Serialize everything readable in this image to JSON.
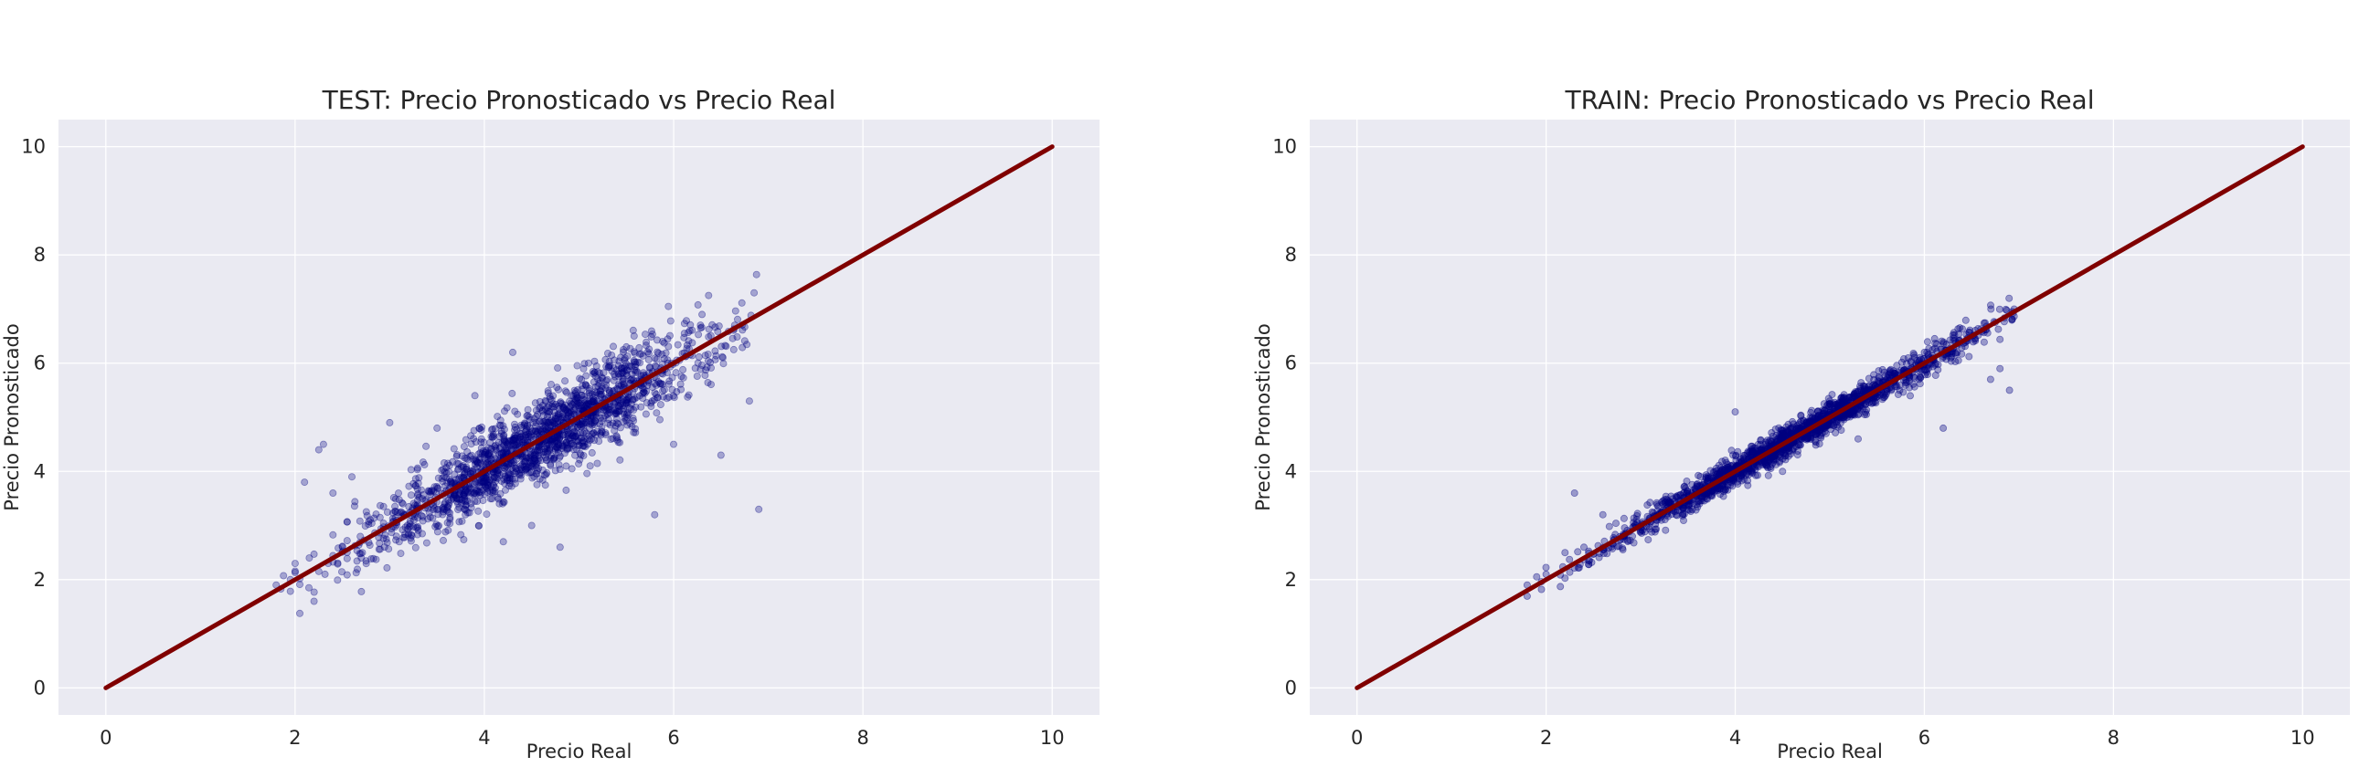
{
  "colors": {
    "plot_background": "#EAEAF2",
    "grid": "#FFFFFF",
    "points": "#000080",
    "reference_line": "#800000",
    "text": "#262626"
  },
  "chart_data": [
    {
      "type": "scatter",
      "title": "TEST: Precio Pronosticado vs Precio Real",
      "xlabel": "Precio Real",
      "ylabel": "Precio Pronosticado",
      "xlim": [
        -0.5,
        10.5
      ],
      "ylim": [
        -0.5,
        10.5
      ],
      "xticks": [
        0,
        2,
        4,
        6,
        8,
        10
      ],
      "yticks": [
        0,
        2,
        4,
        6,
        8,
        10
      ],
      "grid": true,
      "reference_line": {
        "x": [
          0,
          10
        ],
        "y": [
          0,
          10
        ]
      },
      "point_cloud": {
        "x_range": [
          1.8,
          6.95
        ],
        "spread": 0.4,
        "count": 1800,
        "point_alpha": 0.3
      },
      "series": [
        {
          "x": [
            1.8,
            1.95,
            2.1,
            2.15,
            2.2,
            2.25,
            2.3,
            2.35,
            2.4,
            2.6,
            2.7,
            3.0,
            3.1,
            3.5,
            3.8,
            3.9,
            4.2,
            4.3,
            4.5,
            4.8,
            5.1,
            5.5,
            5.8,
            6.0,
            6.3,
            6.5,
            6.8,
            6.85,
            6.9
          ],
          "y": [
            1.9,
            2.0,
            3.8,
            2.4,
            1.6,
            4.4,
            4.5,
            2.3,
            3.6,
            3.9,
            2.4,
            4.9,
            2.7,
            4.8,
            3.2,
            5.4,
            2.7,
            6.2,
            3.0,
            2.6,
            6.0,
            6.3,
            3.2,
            4.5,
            6.9,
            4.3,
            5.3,
            7.3,
            3.3
          ]
        }
      ]
    },
    {
      "type": "scatter",
      "title": "TRAIN: Precio Pronosticado vs Precio Real",
      "xlabel": "Precio Real",
      "ylabel": "Precio Pronosticado",
      "xlim": [
        -0.5,
        10.5
      ],
      "ylim": [
        -0.5,
        10.5
      ],
      "xticks": [
        0,
        2,
        4,
        6,
        8,
        10
      ],
      "yticks": [
        0,
        2,
        4,
        6,
        8,
        10
      ],
      "grid": true,
      "reference_line": {
        "x": [
          0,
          10
        ],
        "y": [
          0,
          10
        ]
      },
      "point_cloud": {
        "x_range": [
          1.8,
          6.95
        ],
        "spread": 0.15,
        "count": 1800,
        "point_alpha": 0.35
      },
      "series": [
        {
          "x": [
            1.8,
            2.0,
            2.2,
            2.3,
            2.4,
            2.6,
            3.0,
            3.5,
            4.0,
            4.5,
            5.0,
            5.3,
            5.5,
            6.0,
            6.2,
            6.7,
            6.8,
            6.9,
            6.95
          ],
          "y": [
            1.9,
            2.1,
            2.5,
            3.6,
            2.6,
            3.2,
            3.0,
            3.3,
            5.1,
            4.0,
            5.3,
            4.6,
            5.6,
            6.2,
            4.8,
            5.7,
            5.9,
            5.5,
            7.0
          ]
        }
      ]
    }
  ]
}
